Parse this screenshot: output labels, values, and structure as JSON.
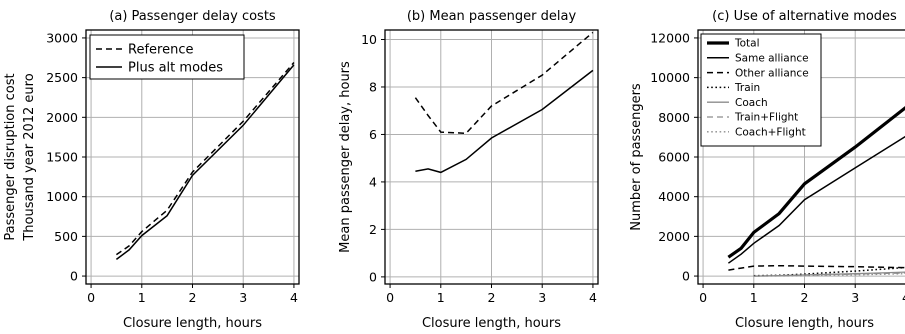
{
  "chart_data": [
    {
      "type": "line",
      "title": "(a) Passenger delay costs",
      "xlabel": "Closure length, hours",
      "ylabel": [
        "Passenger disruption cost",
        "Thousand year 2012 euro"
      ],
      "xlim": [
        -0.1,
        4.1
      ],
      "ylim": [
        -100,
        3100
      ],
      "xticks": [
        "0",
        "1",
        "2",
        "3",
        "4"
      ],
      "yticks": [
        "0",
        "500",
        "1000",
        "1500",
        "2000",
        "2500",
        "3000"
      ],
      "grid": true,
      "legend": "top-left",
      "series": [
        {
          "name": "Reference",
          "style": "dashed",
          "color": "#000000",
          "x": [
            0.5,
            0.75,
            1,
            1.5,
            2,
            3,
            4
          ],
          "y": [
            270,
            380,
            560,
            830,
            1310,
            1950,
            2690
          ]
        },
        {
          "name": "Plus alt modes",
          "style": "solid",
          "color": "#000000",
          "x": [
            0.5,
            0.75,
            1,
            1.5,
            2,
            3,
            4
          ],
          "y": [
            210,
            330,
            510,
            760,
            1270,
            1900,
            2660
          ]
        }
      ]
    },
    {
      "type": "line",
      "title": "(b) Mean passenger delay",
      "xlabel": "Closure length, hours",
      "ylabel": [
        "Mean passenger delay, hours"
      ],
      "xlim": [
        -0.1,
        4.1
      ],
      "ylim": [
        -0.3,
        10.4
      ],
      "xticks": [
        "0",
        "1",
        "2",
        "3",
        "4"
      ],
      "yticks": [
        "0",
        "2",
        "4",
        "6",
        "8",
        "10"
      ],
      "grid": true,
      "legend": "none",
      "series": [
        {
          "style": "dashed",
          "color": "#000000",
          "x": [
            0.5,
            0.75,
            1,
            1.5,
            2,
            3,
            4
          ],
          "y": [
            7.55,
            6.8,
            6.1,
            6.05,
            7.2,
            8.5,
            10.3
          ]
        },
        {
          "style": "solid",
          "color": "#000000",
          "x": [
            0.5,
            0.75,
            1,
            1.5,
            2,
            3,
            4
          ],
          "y": [
            4.45,
            4.55,
            4.4,
            4.95,
            5.85,
            7.05,
            8.7
          ]
        }
      ]
    },
    {
      "type": "line",
      "title": "(c) Use of alternative modes",
      "xlabel": "Closure length, hours",
      "ylabel": [
        "Number of passengers"
      ],
      "xlim": [
        -0.1,
        4.1
      ],
      "ylim": [
        -400,
        12400
      ],
      "xticks": [
        "0",
        "1",
        "2",
        "3",
        "4"
      ],
      "yticks": [
        "0",
        "2000",
        "4000",
        "6000",
        "8000",
        "10000",
        "12000"
      ],
      "grid": true,
      "legend": "top-left",
      "series": [
        {
          "name": "Total",
          "style": "solid-thick",
          "color": "#000000",
          "x": [
            0.5,
            0.75,
            1,
            1.5,
            2,
            3,
            4
          ],
          "y": [
            950,
            1400,
            2200,
            3150,
            4650,
            6500,
            8500
          ]
        },
        {
          "name": "Same alliance",
          "style": "solid",
          "color": "#000000",
          "x": [
            0.5,
            0.75,
            1,
            1.5,
            2,
            3,
            4
          ],
          "y": [
            650,
            1100,
            1650,
            2550,
            3850,
            5450,
            7050
          ]
        },
        {
          "name": "Other alliance",
          "style": "dashed",
          "color": "#000000",
          "x": [
            0.5,
            0.75,
            1,
            1.5,
            2,
            3,
            4
          ],
          "y": [
            300,
            400,
            500,
            520,
            500,
            470,
            420
          ]
        },
        {
          "name": "Train",
          "style": "dotted",
          "color": "#000000",
          "x": [
            1,
            1.5,
            2,
            3,
            4
          ],
          "y": [
            20,
            40,
            100,
            250,
            430
          ]
        },
        {
          "name": "Coach",
          "style": "solid",
          "color": "#8c8c8c",
          "x": [
            1,
            1.5,
            2,
            3,
            4
          ],
          "y": [
            0,
            20,
            60,
            120,
            200
          ]
        },
        {
          "name": "Train+Flight",
          "style": "dashed",
          "color": "#8c8c8c",
          "x": [
            1,
            1.5,
            2,
            3,
            4
          ],
          "y": [
            0,
            20,
            50,
            100,
            160
          ]
        },
        {
          "name": "Coach+Flight",
          "style": "dotted",
          "color": "#8c8c8c",
          "x": [
            1,
            1.5,
            2,
            3,
            4
          ],
          "y": [
            0,
            10,
            30,
            60,
            120
          ]
        }
      ]
    }
  ]
}
